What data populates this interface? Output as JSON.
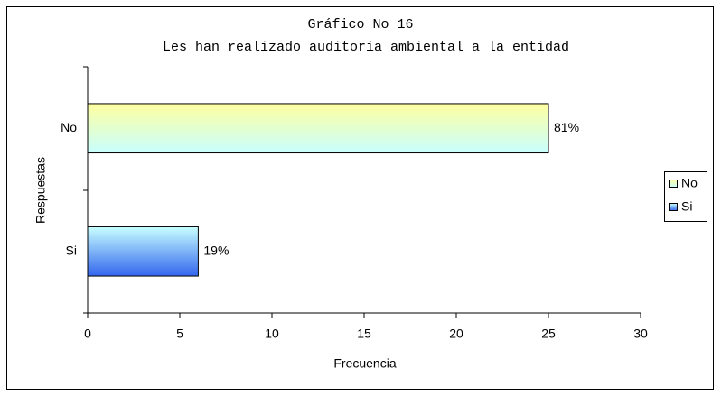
{
  "chart_data": {
    "type": "hbar",
    "title": "Gráfico No 16",
    "subtitle": "Les han realizado auditoría ambiental a la entidad",
    "x_label": "Frecuencia",
    "y_label": "Respuestas",
    "categories": [
      "No",
      "Si"
    ],
    "values": [
      25,
      6
    ],
    "value_labels": [
      "81%",
      "19%"
    ],
    "colors": [
      {
        "from": "#ffffa0",
        "to": "#c8ffff"
      },
      {
        "from": "#c8ffff",
        "to": "#3366ee"
      }
    ],
    "xlim": [
      0,
      30
    ],
    "xticks": [
      0,
      5,
      10,
      15,
      20,
      25,
      30
    ],
    "legend": "right"
  }
}
